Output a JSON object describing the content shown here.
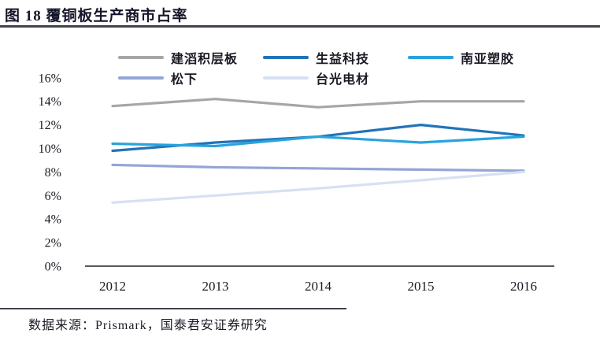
{
  "header": {
    "title": "图 18 覆铜板生产商市占率"
  },
  "footer": {
    "source": "数据来源：Prismark，国泰君安证券研究"
  },
  "chart_data": {
    "type": "line",
    "title": "覆铜板生产商市占率",
    "categories": [
      "2012",
      "2013",
      "2014",
      "2015",
      "2016"
    ],
    "series": [
      {
        "name": "建滔积层板",
        "color": "#a6a6a6",
        "values": [
          13.6,
          14.2,
          13.5,
          14.0,
          14.0
        ]
      },
      {
        "name": "生益科技",
        "color": "#2273b8",
        "values": [
          9.8,
          10.5,
          11.0,
          12.0,
          11.1
        ]
      },
      {
        "name": "南亚塑胶",
        "color": "#29a3dd",
        "values": [
          10.4,
          10.2,
          11.0,
          10.5,
          11.0
        ]
      },
      {
        "name": "松下",
        "color": "#94a5d6",
        "values": [
          8.6,
          8.4,
          8.3,
          8.2,
          8.1
        ]
      },
      {
        "name": "台光电材",
        "color": "#d6e1f2",
        "values": [
          5.4,
          6.0,
          6.6,
          7.3,
          8.0
        ]
      }
    ],
    "xlabel": "",
    "ylabel": "",
    "ylim": [
      0,
      16
    ],
    "ytick_step": 2,
    "yticks": [
      "0%",
      "2%",
      "4%",
      "6%",
      "8%",
      "10%",
      "12%",
      "14%",
      "16%"
    ],
    "grid": false,
    "legend_position": "top",
    "axis_color": "#595959",
    "tick_color": "#1a1a24"
  }
}
